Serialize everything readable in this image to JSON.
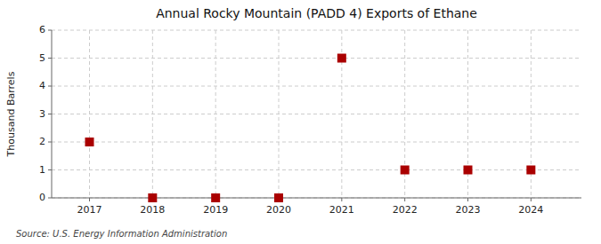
{
  "chart_data": {
    "type": "scatter",
    "title": "Annual Rocky Mountain (PADD 4) Exports of Ethane",
    "ylabel": "Thousand Barrels",
    "source": "Source: U.S. Energy Information Administration",
    "x": [
      2017,
      2018,
      2019,
      2020,
      2021,
      2022,
      2023,
      2024
    ],
    "values": [
      2,
      0,
      0,
      0,
      5,
      1,
      1,
      1
    ],
    "color": "#aa0000",
    "marker": "square",
    "xlim": [
      2016.4,
      2024.8
    ],
    "ylim": [
      0,
      6
    ],
    "xticks": [
      2017,
      2018,
      2019,
      2020,
      2021,
      2022,
      2023,
      2024
    ],
    "yticks": [
      0,
      1,
      2,
      3,
      4,
      5,
      6
    ],
    "grid": true
  }
}
